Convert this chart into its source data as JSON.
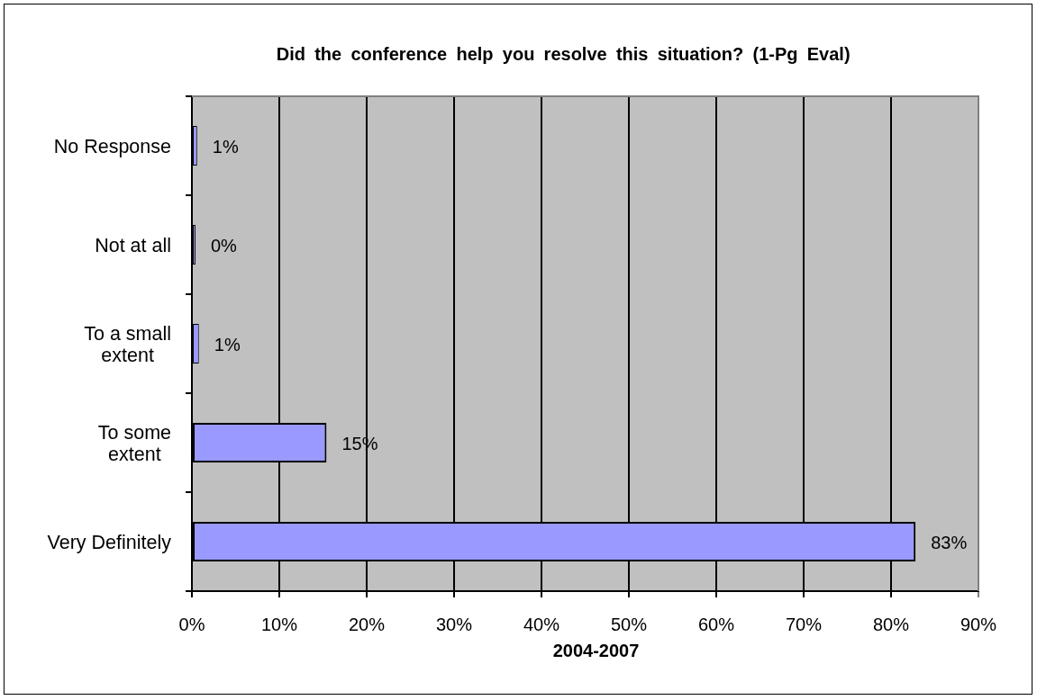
{
  "chart_data": {
    "type": "bar",
    "orientation": "horizontal",
    "title": "Did the conference help you resolve this situation? (1-Pg Eval)",
    "xlabel": "2004-2007",
    "categories": [
      "No Response",
      "Not at all",
      "To a small extent",
      "To some extent",
      "Very Definitely"
    ],
    "values": [
      0.6,
      0.4,
      0.8,
      15.4,
      82.8
    ],
    "value_labels": [
      "1%",
      "0%",
      "1%",
      "15%",
      "83%"
    ],
    "color": "#9999ff",
    "xlim": [
      0,
      90
    ],
    "xticks": [
      {
        "value": 0,
        "label": "0%"
      },
      {
        "value": 10,
        "label": "10%"
      },
      {
        "value": 20,
        "label": "20%"
      },
      {
        "value": 30,
        "label": "30%"
      },
      {
        "value": 40,
        "label": "40%"
      },
      {
        "value": 50,
        "label": "50%"
      },
      {
        "value": 60,
        "label": "60%"
      },
      {
        "value": 70,
        "label": "70%"
      },
      {
        "value": 80,
        "label": "80%"
      },
      {
        "value": 90,
        "label": "90%"
      }
    ],
    "grid": "x"
  }
}
